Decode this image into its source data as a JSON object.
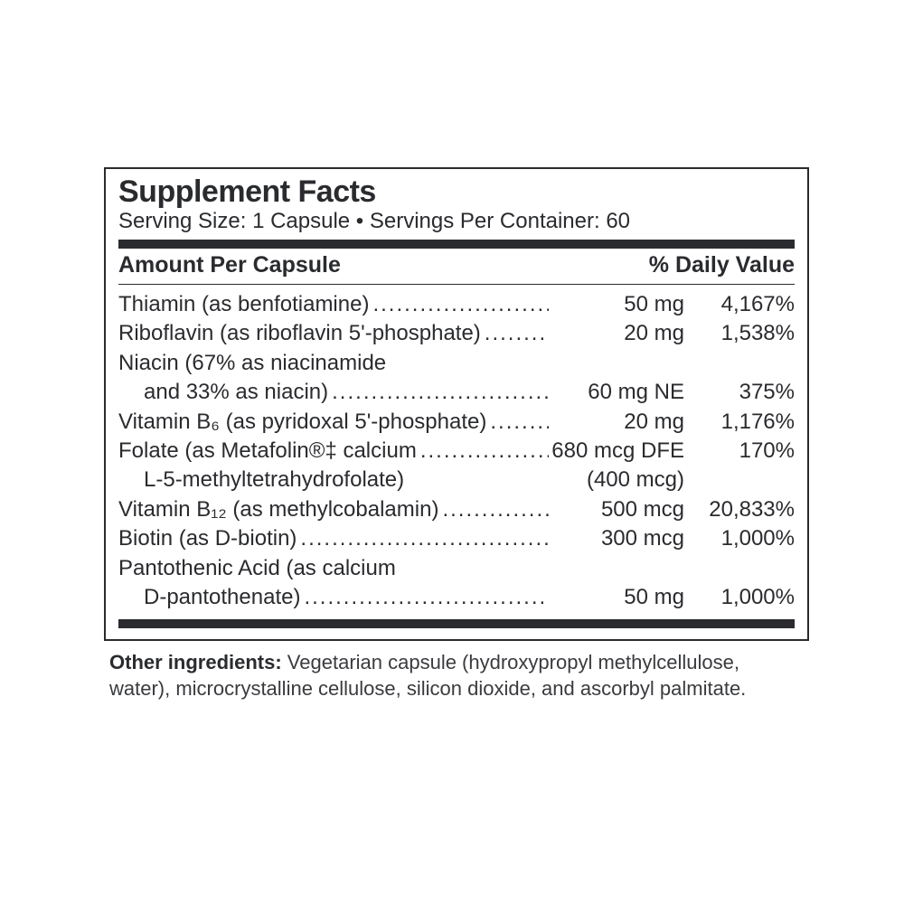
{
  "title": "Supplement Facts",
  "serving_line": "Serving Size: 1 Capsule • Servings Per Container: 60",
  "header_left": "Amount Per Capsule",
  "header_right": "% Daily Value",
  "rows": [
    {
      "name": "Thiamin (as benfotiamine)",
      "amount": "50 mg",
      "dv": "4,167%",
      "leader": true
    },
    {
      "name": "Riboflavin (as riboflavin 5'-phosphate)",
      "amount": "20 mg",
      "dv": "1,538%",
      "leader": true
    },
    {
      "name": "Niacin (67% as niacinamide",
      "amount": "",
      "dv": "",
      "leader": false
    },
    {
      "name": "and 33% as niacin)",
      "indent": true,
      "amount": "60 mg NE",
      "dv": "375%",
      "leader": true
    },
    {
      "name": "Vitamin B₆ (as pyridoxal 5'-phosphate)",
      "amount": "20 mg",
      "dv": "1,176%",
      "leader": true
    },
    {
      "name": "Folate (as Metafolin®‡ calcium",
      "amount": "680 mcg DFE",
      "dv": "170%",
      "leader": true
    },
    {
      "name": "L-5-methyltetrahydrofolate)",
      "indent": true,
      "amount": "(400 mcg)",
      "dv": "",
      "leader": false
    },
    {
      "name": "Vitamin B₁₂ (as methylcobalamin)",
      "amount": "500 mcg",
      "dv": "20,833%",
      "leader": true
    },
    {
      "name": "Biotin (as D-biotin)",
      "amount": "300 mcg",
      "dv": "1,000%",
      "leader": true
    },
    {
      "name": "Pantothenic Acid (as calcium",
      "amount": "",
      "dv": "",
      "leader": false
    },
    {
      "name": "D-pantothenate)",
      "indent": true,
      "amount": "50 mg",
      "dv": "1,000%",
      "leader": true
    }
  ],
  "other_label": "Other ingredients:",
  "other_text": " Vegetarian capsule (hydroxypropyl methylcellulose, water), microcrystalline cellulose, silicon dioxide, and ascorbyl palmitate.",
  "colors": {
    "text": "#2a2b2e",
    "background": "#ffffff",
    "rule": "#2a2b2e"
  },
  "leader_dots": "...................................................................................................."
}
